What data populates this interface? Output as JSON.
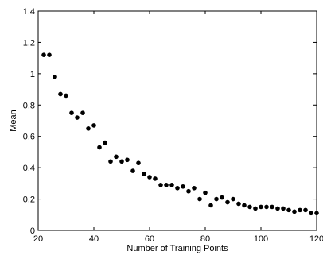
{
  "chart_data": {
    "type": "scatter",
    "title": "",
    "xlabel": "Number of Training Points",
    "ylabel": "Mean",
    "xlim": [
      20,
      120
    ],
    "ylim": [
      0,
      1.4
    ],
    "x_ticks": [
      20,
      40,
      60,
      80,
      100,
      120
    ],
    "y_ticks": [
      0,
      0.2,
      0.4,
      0.6,
      0.8,
      1,
      1.2,
      1.4
    ],
    "x_tick_labels": [
      "20",
      "40",
      "60",
      "80",
      "100",
      "120"
    ],
    "y_tick_labels": [
      "0",
      "0.2",
      "0.4",
      "0.6",
      "0.8",
      "1",
      "1.2",
      "1.4"
    ],
    "grid": false,
    "marker_color": "#000000",
    "series": [
      {
        "x": [
          22,
          24,
          26,
          28,
          30,
          32,
          34,
          36,
          38,
          40,
          42,
          44,
          46,
          48,
          50,
          52,
          54,
          56,
          58,
          60,
          62,
          64,
          66,
          68,
          70,
          72,
          74,
          76,
          78,
          80,
          82,
          84,
          86,
          88,
          90,
          92,
          94,
          96,
          98,
          100,
          102,
          104,
          106,
          108,
          110,
          112,
          114,
          116,
          118,
          120
        ],
        "y": [
          1.12,
          1.12,
          0.98,
          0.87,
          0.86,
          0.75,
          0.72,
          0.75,
          0.65,
          0.67,
          0.53,
          0.56,
          0.44,
          0.47,
          0.44,
          0.45,
          0.38,
          0.43,
          0.36,
          0.34,
          0.33,
          0.29,
          0.29,
          0.29,
          0.27,
          0.28,
          0.25,
          0.27,
          0.2,
          0.24,
          0.16,
          0.2,
          0.21,
          0.18,
          0.2,
          0.17,
          0.16,
          0.15,
          0.14,
          0.15,
          0.15,
          0.15,
          0.14,
          0.14,
          0.13,
          0.12,
          0.13,
          0.13,
          0.11,
          0.11
        ]
      }
    ]
  }
}
